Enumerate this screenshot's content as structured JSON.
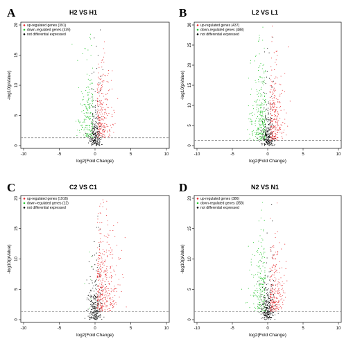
{
  "colors": {
    "up": "#e8262a",
    "down": "#22c42a",
    "none": "#000000",
    "threshold": "#8c8c8c"
  },
  "chart_data": [
    {
      "panel": "A",
      "title": "H2 VS H1",
      "type": "scatter",
      "xlabel": "log2(Fold Change)",
      "ylabel": "-log10(pValue)",
      "xlim": [
        -10,
        10
      ],
      "ylim": [
        0,
        20
      ],
      "xticks": [
        -10,
        -5,
        0,
        5,
        10
      ],
      "yticks": [
        0,
        5,
        10,
        15,
        20
      ],
      "threshold_y": 1.3,
      "legend_position": "top-left",
      "series": [
        {
          "name": "up-regulated genes (391)",
          "color": "#e8262a",
          "count": 391
        },
        {
          "name": "down-regulated genes (339)",
          "color": "#22c42a",
          "count": 339
        },
        {
          "name": "not differential expressed",
          "color": "#000000"
        }
      ]
    },
    {
      "panel": "B",
      "title": "L2 VS L1",
      "type": "scatter",
      "xlabel": "log2(Fold Change)",
      "ylabel": "-log10(pValue)",
      "xlim": [
        -10,
        10
      ],
      "ylim": [
        0,
        30
      ],
      "xticks": [
        -10,
        -5,
        0,
        5,
        10
      ],
      "yticks": [
        0,
        5,
        10,
        15,
        20,
        25,
        30
      ],
      "threshold_y": 1.3,
      "legend_position": "top-left",
      "series": [
        {
          "name": "up-regulated genes (437)",
          "color": "#e8262a",
          "count": 437
        },
        {
          "name": "down-regulated genes (488)",
          "color": "#22c42a",
          "count": 488
        },
        {
          "name": "not differential expressed",
          "color": "#000000"
        }
      ]
    },
    {
      "panel": "C",
      "title": "C2 VS C1",
      "type": "scatter",
      "xlabel": "log2(Fold Change)",
      "ylabel": "-log10(pValue)",
      "xlim": [
        -10,
        10
      ],
      "ylim": [
        0,
        20
      ],
      "xticks": [
        -10,
        -5,
        0,
        5,
        10
      ],
      "yticks": [
        0,
        5,
        10,
        15,
        20
      ],
      "threshold_y": 1.3,
      "legend_position": "top-left",
      "series": [
        {
          "name": "up-regulated genes (1916)",
          "color": "#e8262a",
          "count": 1916
        },
        {
          "name": "down-regulated genes (12)",
          "color": "#22c42a",
          "count": 12
        },
        {
          "name": "not differential expressed",
          "color": "#000000"
        }
      ]
    },
    {
      "panel": "D",
      "title": "N2 VS N1",
      "type": "scatter",
      "xlabel": "log2(Fold Change)",
      "ylabel": "-log10(pValue)",
      "xlim": [
        -10,
        10
      ],
      "ylim": [
        0,
        20
      ],
      "xticks": [
        -10,
        -5,
        0,
        5,
        10
      ],
      "yticks": [
        0,
        5,
        10,
        15,
        20
      ],
      "threshold_y": 1.3,
      "legend_position": "top-left",
      "series": [
        {
          "name": "up-regulated genes (386)",
          "color": "#e8262a",
          "count": 386
        },
        {
          "name": "down-regulated genes (358)",
          "color": "#22c42a",
          "count": 358
        },
        {
          "name": "not differential expressed",
          "color": "#000000"
        }
      ]
    }
  ]
}
